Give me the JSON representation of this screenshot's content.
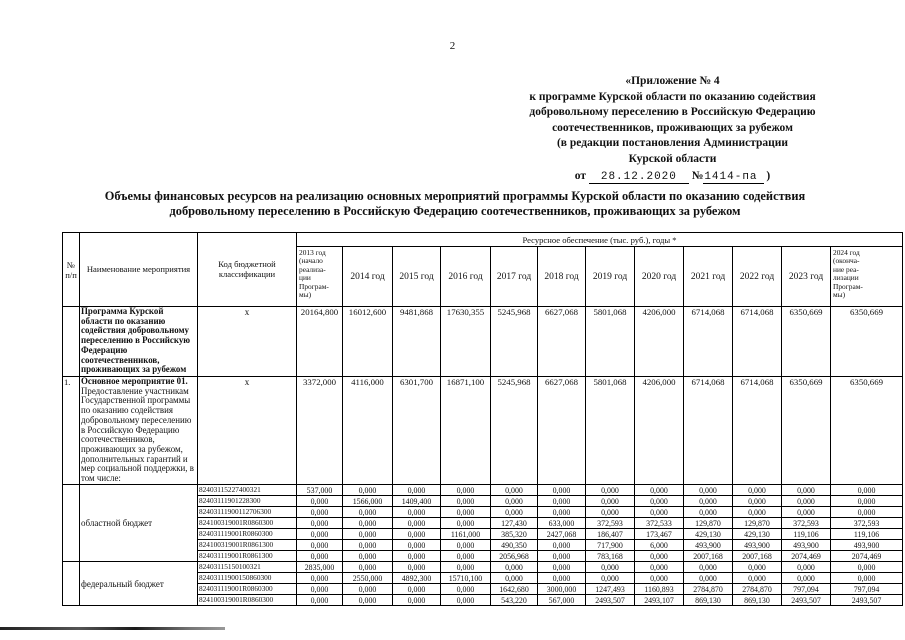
{
  "page": {
    "number": "2"
  },
  "header": {
    "lines": [
      "«Приложение № 4",
      "к программе Курской области по оказанию содействия",
      "добровольному переселению в Российскую Федерацию",
      "соотечественников, проживающих за рубежом",
      "(в редакции постановления Администрации",
      "Курской области"
    ],
    "from_label": "от",
    "date": "28.12.2020",
    "num_sign": "№",
    "number": "1414-па",
    "close_paren": ")"
  },
  "title": {
    "line1": "Объемы финансовых ресурсов на реализацию основных мероприятий программы Курской области по оказанию содействия",
    "line2": "добровольному переселению в Российскую Федерацию соотечественников, проживающих за рубежом"
  },
  "table": {
    "resource_header": "Ресурсное обеспечение (тыс. руб.), годы *",
    "col_headers": {
      "num": "№\nп/п",
      "name": "Наименование мероприятия",
      "code": "Код бюджетной\nклассификации"
    },
    "year_headers": [
      "2013 год\n(начало\nреализа-\nции\nПрограм-\nмы)",
      "2014 год",
      "2015 год",
      "2016 год",
      "2017 год",
      "2018 год",
      "2019 год",
      "2020 год",
      "2021 год",
      "2022 год",
      "2023 год",
      "2024 год\n(оконча-\nние реа-\nлизации\nПрограм-\nмы)"
    ],
    "main_rows": [
      {
        "num": "",
        "name_bold": "Программа Курской области по оказанию содействия добровольному переселению в Российскую Федерацию соотечественников, проживающих за рубежом",
        "name_rest": "",
        "code": "х",
        "values": [
          "20164,800",
          "16012,600",
          "9481,868",
          "17630,355",
          "5245,968",
          "6627,068",
          "5801,068",
          "4206,000",
          "6714,068",
          "6714,068",
          "6350,669",
          "6350,669"
        ]
      },
      {
        "num": "1.",
        "name_bold": "Основное мероприятие 01.",
        "name_rest": "Предоставление участникам Государственной программы по оказанию содействия добровольному переселению в Российскую Федерацию соотечественников, проживающих за рубежом, дополнительных гарантий и мер социальной поддержки, в том числе:",
        "code": "х",
        "values": [
          "3372,000",
          "4116,000",
          "6301,700",
          "16871,100",
          "5245,968",
          "6627,068",
          "5801,068",
          "4206,000",
          "6714,068",
          "6714,068",
          "6350,669",
          "6350,669"
        ]
      }
    ],
    "budget_groups": [
      {
        "label": "областной бюджет",
        "rows": [
          {
            "code": "82403115227400321",
            "values": [
              "537,000",
              "0,000",
              "0,000",
              "0,000",
              "0,000",
              "0,000",
              "0,000",
              "0,000",
              "0,000",
              "0,000",
              "0,000",
              "0,000"
            ]
          },
          {
            "code": "82403111901228300",
            "values": [
              "0,000",
              "1566,000",
              "1409,400",
              "0,000",
              "0,000",
              "0,000",
              "0,000",
              "0,000",
              "0,000",
              "0,000",
              "0,000",
              "0,000"
            ]
          },
          {
            "code": "82403111900112706300",
            "values": [
              "0,000",
              "0,000",
              "0,000",
              "0,000",
              "0,000",
              "0,000",
              "0,000",
              "0,000",
              "0,000",
              "0,000",
              "0,000",
              "0,000"
            ]
          },
          {
            "code": "824100319001R0860300",
            "values": [
              "0,000",
              "0,000",
              "0,000",
              "0,000",
              "127,430",
              "633,000",
              "372,593",
              "372,533",
              "129,870",
              "129,870",
              "372,593",
              "372,593"
            ]
          },
          {
            "code": "824031119001R0860300",
            "values": [
              "0,000",
              "0,000",
              "0,000",
              "1161,000",
              "385,320",
              "2427,068",
              "186,407",
              "173,467",
              "429,130",
              "429,130",
              "119,106",
              "119,106"
            ]
          },
          {
            "code": "824100319001R0861300",
            "values": [
              "0,000",
              "0,000",
              "0,000",
              "0,000",
              "490,350",
              "0,000",
              "717,900",
              "6,000",
              "493,900",
              "493,900",
              "493,900",
              "493,900"
            ]
          },
          {
            "code": "824031119001R0861300",
            "values": [
              "0,000",
              "0,000",
              "0,000",
              "0,000",
              "2056,968",
              "0,000",
              "783,168",
              "0,000",
              "2007,168",
              "2007,168",
              "2074,469",
              "2074,469"
            ]
          }
        ]
      },
      {
        "label": "федеральный бюджет",
        "rows": [
          {
            "code": "82403115150100321",
            "values": [
              "2835,000",
              "0,000",
              "0,000",
              "0,000",
              "0,000",
              "0,000",
              "0,000",
              "0,000",
              "0,000",
              "0,000",
              "0,000",
              "0,000"
            ]
          },
          {
            "code": "82403111900150860300",
            "values": [
              "0,000",
              "2550,000",
              "4892,300",
              "15710,100",
              "0,000",
              "0,000",
              "0,000",
              "0,000",
              "0,000",
              "0,000",
              "0,000",
              "0,000"
            ]
          },
          {
            "code": "824031119001R0860300",
            "values": [
              "0,000",
              "0,000",
              "0,000",
              "0,000",
              "1642,680",
              "3000,000",
              "1247,493",
              "1160,893",
              "2784,870",
              "2784,870",
              "797,094",
              "797,094"
            ]
          },
          {
            "code": "824100319001R0860300",
            "values": [
              "0,000",
              "0,000",
              "0,000",
              "0,000",
              "543,220",
              "567,000",
              "2493,507",
              "2493,107",
              "869,130",
              "869,130",
              "2493,507",
              "2493,507"
            ]
          }
        ]
      }
    ]
  }
}
